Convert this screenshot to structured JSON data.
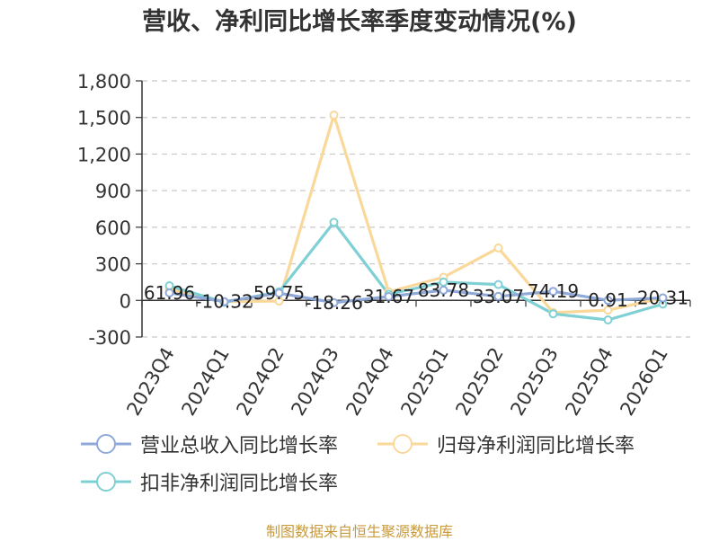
{
  "chart_data": {
    "type": "line",
    "title": "营收、净利同比增长率季度变动情况(%)",
    "categories": [
      "2023Q4",
      "2024Q1",
      "2024Q2",
      "2024Q3",
      "2024Q4",
      "2025Q1",
      "2025Q2",
      "2025Q3",
      "2025Q4",
      "2026Q1"
    ],
    "ylim": [
      -300,
      1800
    ],
    "yticks": [
      -300,
      0,
      300,
      600,
      900,
      1200,
      1500,
      1800
    ],
    "ytick_labels": [
      "-300",
      "0",
      "300",
      "600",
      "900",
      "1,200",
      "1,500",
      "1,800"
    ],
    "grid": true,
    "legend_position": "bottom",
    "series": [
      {
        "name": "营业总收入同比增长率",
        "color": "#8fa9d8",
        "values": [
          61.96,
          -10.32,
          59.75,
          -18.26,
          31.67,
          83.78,
          33.07,
          74.19,
          0.91,
          20.31
        ],
        "labels": [
          "61.96",
          "-10.32",
          "59.75",
          "-18.26",
          "31.67",
          "83.78",
          "33.07",
          "74.19",
          "0.91",
          "20.31"
        ]
      },
      {
        "name": "归母净利润同比增长率",
        "color": "#fad89a",
        "values": [
          90,
          -10,
          -5,
          1520,
          70,
          190,
          430,
          -100,
          -80,
          20
        ]
      },
      {
        "name": "扣非净利润同比增长率",
        "color": "#7fd0d4",
        "values": [
          120,
          -15,
          70,
          640,
          50,
          150,
          130,
          -110,
          -160,
          -30
        ]
      }
    ]
  },
  "source": "制图数据来自恒生聚源数据库"
}
